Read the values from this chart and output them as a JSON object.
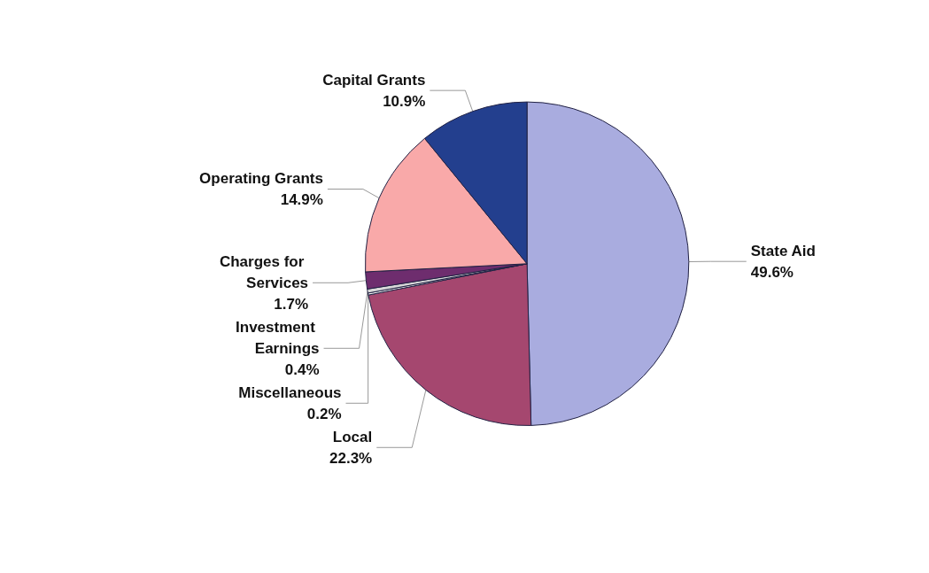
{
  "chart_data": {
    "type": "pie",
    "categories": [
      "State Aid",
      "Local",
      "Miscellaneous",
      "Investment Earnings",
      "Charges for Services",
      "Operating Grants",
      "Capital Grants"
    ],
    "values": [
      49.6,
      22.3,
      0.2,
      0.4,
      1.7,
      14.9,
      10.9
    ],
    "value_labels": [
      "49.6%",
      "22.3%",
      "0.2%",
      "0.4%",
      "1.7%",
      "14.9%",
      "10.9%"
    ],
    "colors": [
      "#a9acdf",
      "#a5476f",
      "#f2f2f2",
      "#d8d8d8",
      "#6e2d6e",
      "#f9a9a9",
      "#233f8e"
    ],
    "legend": false
  }
}
